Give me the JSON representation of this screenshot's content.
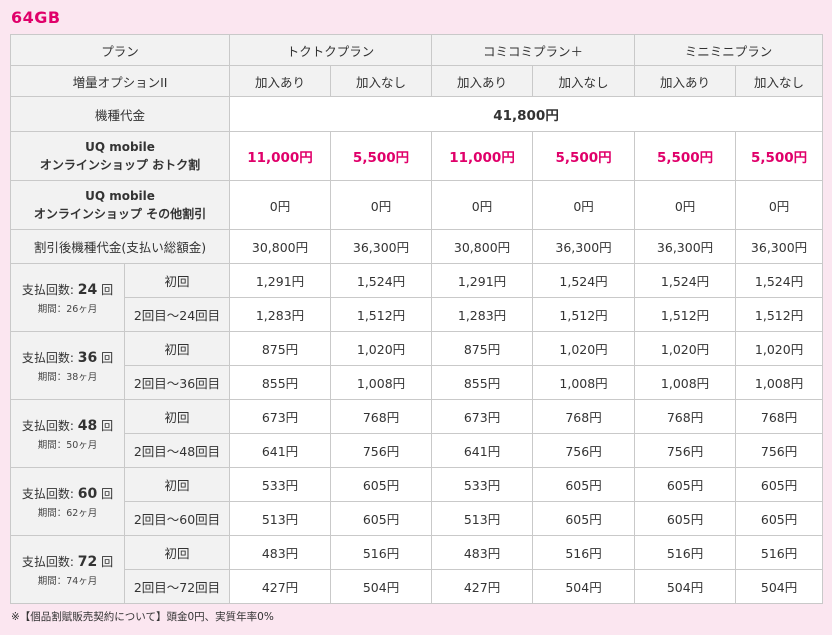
{
  "title": "64GB",
  "plans": [
    "トクトクプラン",
    "コミコミプラン＋",
    "ミニミニプラン"
  ],
  "header_plan_label": "プラン",
  "option_label": "増量オプションII",
  "option_values": [
    "加入あり",
    "加入なし",
    "加入あり",
    "加入なし",
    "加入あり",
    "加入なし"
  ],
  "device_price_label": "機種代金",
  "device_price": "41,800円",
  "uq_discount": {
    "line1": "UQ mobile",
    "line2": "オンラインショップ おトク割",
    "values": [
      "11,000円",
      "5,500円",
      "11,000円",
      "5,500円",
      "5,500円",
      "5,500円"
    ]
  },
  "uq_other": {
    "line1": "UQ mobile",
    "line2": "オンラインショップ その他割引",
    "values": [
      "0円",
      "0円",
      "0円",
      "0円",
      "0円",
      "0円"
    ]
  },
  "after_discount": {
    "label": "割引後機種代金(支払い総額金)",
    "values": [
      "30,800円",
      "36,300円",
      "30,800円",
      "36,300円",
      "36,300円",
      "36,300円"
    ]
  },
  "installments": [
    {
      "prefix": "支払回数: ",
      "count": "24",
      "suffix": " 回",
      "period": "期間：26ヶ月",
      "first_label": "初回",
      "first": [
        "1,291円",
        "1,524円",
        "1,291円",
        "1,524円",
        "1,524円",
        "1,524円"
      ],
      "rest_label": "2回目〜24回目",
      "rest": [
        "1,283円",
        "1,512円",
        "1,283円",
        "1,512円",
        "1,512円",
        "1,512円"
      ]
    },
    {
      "prefix": "支払回数: ",
      "count": "36",
      "suffix": " 回",
      "period": "期間：38ヶ月",
      "first_label": "初回",
      "first": [
        "875円",
        "1,020円",
        "875円",
        "1,020円",
        "1,020円",
        "1,020円"
      ],
      "rest_label": "2回目〜36回目",
      "rest": [
        "855円",
        "1,008円",
        "855円",
        "1,008円",
        "1,008円",
        "1,008円"
      ]
    },
    {
      "prefix": "支払回数: ",
      "count": "48",
      "suffix": " 回",
      "period": "期間：50ヶ月",
      "first_label": "初回",
      "first": [
        "673円",
        "768円",
        "673円",
        "768円",
        "768円",
        "768円"
      ],
      "rest_label": "2回目〜48回目",
      "rest": [
        "641円",
        "756円",
        "641円",
        "756円",
        "756円",
        "756円"
      ]
    },
    {
      "prefix": "支払回数: ",
      "count": "60",
      "suffix": " 回",
      "period": "期間：62ヶ月",
      "first_label": "初回",
      "first": [
        "533円",
        "605円",
        "533円",
        "605円",
        "605円",
        "605円"
      ],
      "rest_label": "2回目〜60回目",
      "rest": [
        "513円",
        "605円",
        "513円",
        "605円",
        "605円",
        "605円"
      ]
    },
    {
      "prefix": "支払回数: ",
      "count": "72",
      "suffix": " 回",
      "period": "期間：74ヶ月",
      "first_label": "初回",
      "first": [
        "483円",
        "516円",
        "483円",
        "516円",
        "516円",
        "516円"
      ],
      "rest_label": "2回目〜72回目",
      "rest": [
        "427円",
        "504円",
        "427円",
        "504円",
        "504円",
        "504円"
      ]
    }
  ],
  "note": "※【個品割賦販売契約について】頭金0円、実質年率0%",
  "colors": {
    "accent": "#e0006a",
    "background": "#fbe6f0",
    "header_bg": "#f2f2f2",
    "border": "#c9c9c9"
  }
}
